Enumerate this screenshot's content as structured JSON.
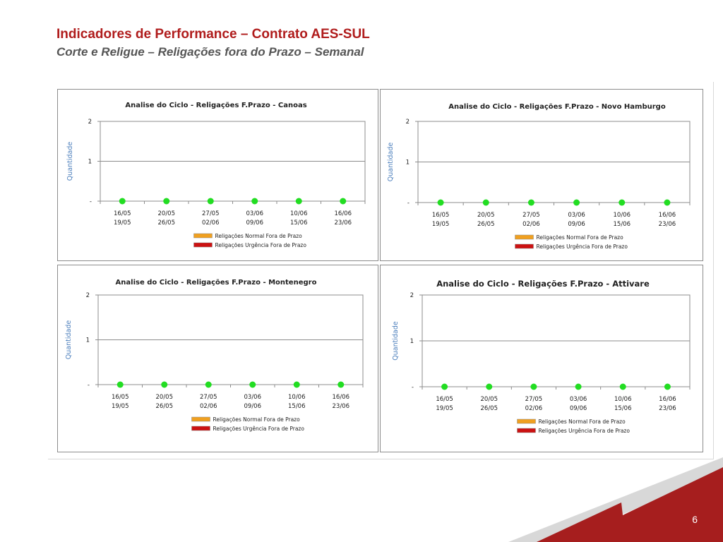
{
  "slide": {
    "title": "Indicadores de Performance – Contrato AES-SUL",
    "subtitle": "Corte e Religue – Religações fora do Prazo – Semanal",
    "page_number": "6"
  },
  "colors": {
    "title": "#b01c1c",
    "marker": "#22dd22",
    "legend_normal": "#f0a020",
    "legend_urgencia": "#cc1111",
    "brand_red": "#a61e1e"
  },
  "chart_data": [
    {
      "type": "scatter",
      "title": "Analise do Ciclo - Religações  F.Prazo - Canoas",
      "ylabel": "Quantidade",
      "yticks": [
        "-",
        "1",
        "2"
      ],
      "ylim": [
        0,
        2
      ],
      "categories": [
        [
          "16/05",
          "19/05"
        ],
        [
          "20/05",
          "26/05"
        ],
        [
          "27/05",
          "02/06"
        ],
        [
          "03/06",
          "09/06"
        ],
        [
          "10/06",
          "15/06"
        ],
        [
          "16/06",
          "23/06"
        ]
      ],
      "values": [
        0,
        0,
        0,
        0,
        0,
        0
      ],
      "legend": [
        "Religações Normal Fora de Prazo",
        "Religações Urgência Fora de Prazo"
      ],
      "legend_position": "bottom"
    },
    {
      "type": "scatter",
      "title": "Analise do Ciclo - Religações  F.Prazo - Novo Hamburgo",
      "ylabel": "Quantidade",
      "yticks": [
        "-",
        "1",
        "2"
      ],
      "ylim": [
        0,
        2
      ],
      "categories": [
        [
          "16/05",
          "19/05"
        ],
        [
          "20/05",
          "26/05"
        ],
        [
          "27/05",
          "02/06"
        ],
        [
          "03/06",
          "09/06"
        ],
        [
          "10/06",
          "15/06"
        ],
        [
          "16/06",
          "23/06"
        ]
      ],
      "values": [
        0,
        0,
        0,
        0,
        0,
        0
      ],
      "legend": [
        "Religações Normal Fora de Prazo",
        "Religações Urgência Fora de Prazo"
      ],
      "legend_position": "bottom"
    },
    {
      "type": "scatter",
      "title": "Analise do Ciclo - Religações  F.Prazo - Montenegro",
      "ylabel": "Quantidade",
      "yticks": [
        "-",
        "1",
        "2"
      ],
      "ylim": [
        0,
        2
      ],
      "categories": [
        [
          "16/05",
          "19/05"
        ],
        [
          "20/05",
          "26/05"
        ],
        [
          "27/05",
          "02/06"
        ],
        [
          "03/06",
          "09/06"
        ],
        [
          "10/06",
          "15/06"
        ],
        [
          "16/06",
          "23/06"
        ]
      ],
      "values": [
        0,
        0,
        0,
        0,
        0,
        0
      ],
      "legend": [
        "Religações Normal Fora de Prazo",
        "Religações Urgência Fora de Prazo"
      ],
      "legend_position": "bottom"
    },
    {
      "type": "scatter",
      "title": "Analise do Ciclo - Religações  F.Prazo - Attivare",
      "ylabel": "Quantidade",
      "yticks": [
        "-",
        "1",
        "2"
      ],
      "ylim": [
        0,
        2
      ],
      "categories": [
        [
          "16/05",
          "19/05"
        ],
        [
          "20/05",
          "26/05"
        ],
        [
          "27/05",
          "02/06"
        ],
        [
          "03/06",
          "09/06"
        ],
        [
          "10/06",
          "15/06"
        ],
        [
          "16/06",
          "23/06"
        ]
      ],
      "values": [
        0,
        0,
        0,
        0,
        0,
        0
      ],
      "legend": [
        "Religações Normal Fora de Prazo",
        "Religações Urgência Fora de Prazo"
      ],
      "legend_position": "bottom"
    }
  ]
}
